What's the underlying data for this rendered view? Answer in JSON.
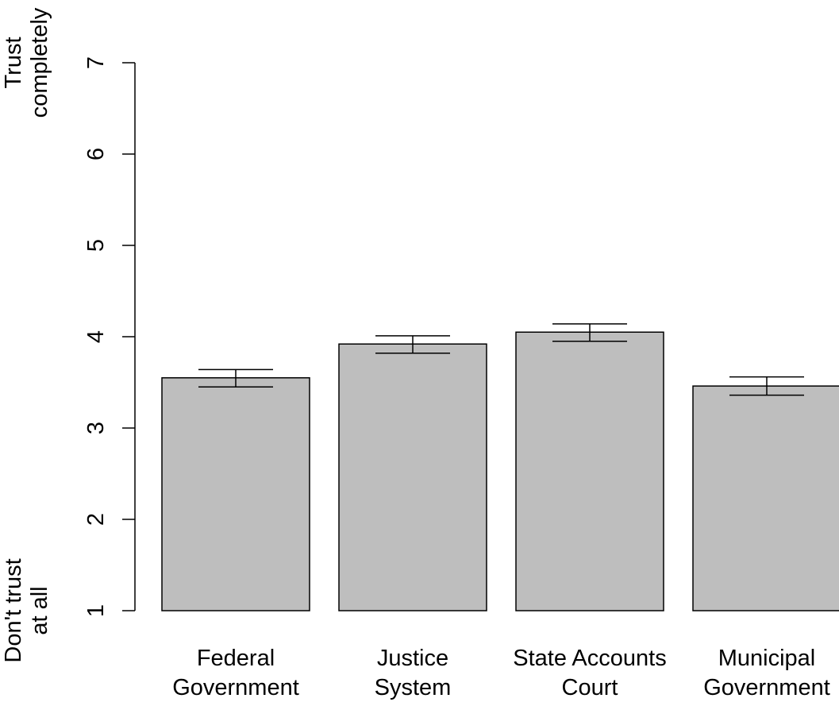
{
  "chart_data": {
    "type": "bar",
    "categories": [
      [
        "Federal",
        "Government"
      ],
      [
        "Justice",
        "System"
      ],
      [
        "State Accounts",
        "Court"
      ],
      [
        "Municipal",
        "Government"
      ]
    ],
    "values": [
      3.55,
      3.92,
      4.05,
      3.46
    ],
    "error_low": [
      3.45,
      3.82,
      3.95,
      3.36
    ],
    "error_high": [
      3.64,
      4.01,
      4.14,
      3.56
    ],
    "bar_color": "#bebebe",
    "ylim": [
      1,
      7
    ],
    "yticks": [
      "1",
      "2",
      "3",
      "4",
      "5",
      "6",
      "7"
    ],
    "ylabel_top": [
      "Trust",
      "completely"
    ],
    "ylabel_bottom": [
      "Don't trust",
      "at all"
    ],
    "grid": false,
    "legend": "none"
  }
}
